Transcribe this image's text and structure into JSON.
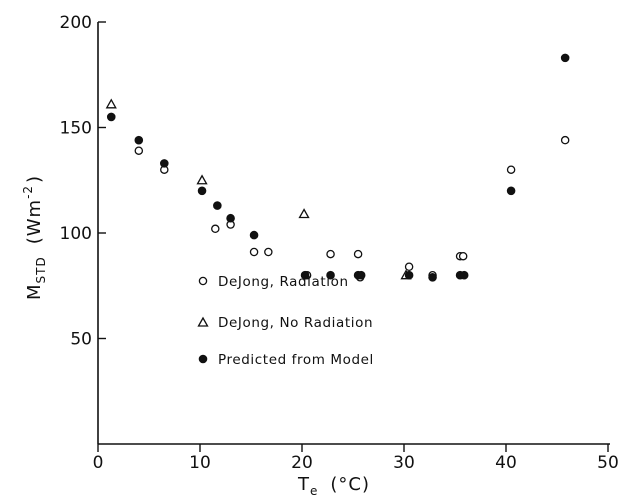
{
  "chart_data": {
    "type": "scatter",
    "title": "",
    "xlabel": {
      "main": "T",
      "sub": "e",
      "unit": "(°C)"
    },
    "ylabel": {
      "main": "M",
      "sub": "STD",
      "unit": "(Wm",
      "exp": "-2",
      "close": ")"
    },
    "xlim": [
      0,
      50
    ],
    "ylim": [
      0,
      200
    ],
    "xticks": [
      0,
      10,
      20,
      30,
      40,
      50
    ],
    "yticks": [
      50,
      100,
      150,
      200
    ],
    "xtick_labels": [
      "0",
      "10",
      "20",
      "30",
      "40",
      "50"
    ],
    "ytick_labels": [
      "50",
      "100",
      "150",
      "200"
    ],
    "grid": false,
    "legend_position": "lower-center",
    "series": [
      {
        "name": "DeJong, Radiation",
        "marker": "open-circle",
        "points": [
          [
            4,
            139
          ],
          [
            6.5,
            130
          ],
          [
            11.5,
            102
          ],
          [
            13,
            104
          ],
          [
            15.3,
            91
          ],
          [
            16.7,
            91
          ],
          [
            20.5,
            80
          ],
          [
            22.8,
            90
          ],
          [
            25.5,
            90
          ],
          [
            25.7,
            79
          ],
          [
            30.5,
            84
          ],
          [
            32.8,
            80
          ],
          [
            35.5,
            89
          ],
          [
            35.8,
            89
          ],
          [
            40.5,
            130
          ],
          [
            45.8,
            144
          ]
        ]
      },
      {
        "name": "DeJong, No Radiation",
        "marker": "open-triangle",
        "points": [
          [
            1.3,
            161
          ],
          [
            10.2,
            125
          ],
          [
            20.2,
            109
          ],
          [
            30.2,
            80
          ]
        ]
      },
      {
        "name": "Predicted from Model",
        "marker": "filled-circle",
        "points": [
          [
            1.3,
            155
          ],
          [
            4,
            144
          ],
          [
            6.5,
            133
          ],
          [
            10.2,
            120
          ],
          [
            11.7,
            113
          ],
          [
            13,
            107
          ],
          [
            15.3,
            99
          ],
          [
            20.3,
            80
          ],
          [
            22.8,
            80
          ],
          [
            25.5,
            80
          ],
          [
            25.8,
            80
          ],
          [
            30.5,
            80
          ],
          [
            32.8,
            79
          ],
          [
            35.5,
            80
          ],
          [
            35.9,
            80
          ],
          [
            40.5,
            120
          ],
          [
            45.8,
            183
          ]
        ]
      }
    ]
  }
}
